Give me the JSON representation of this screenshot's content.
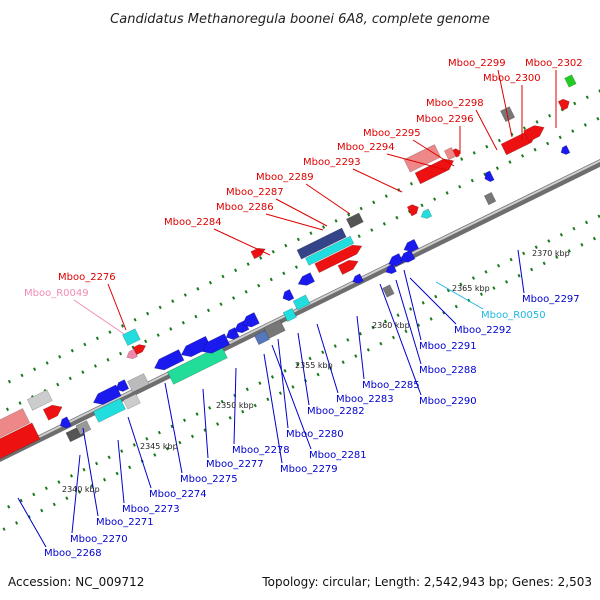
{
  "title": "Candidatus Methanoregula boonei 6A8, complete genome",
  "footer": {
    "accession": "Accession: NC_009712",
    "summary": "Topology: circular; Length: 2,542,943 bp; Genes: 2,503"
  },
  "colors": {
    "background": "#ffffff",
    "backbone": "#8c8c8c",
    "label_red": "#dd0000",
    "label_blue": "#0000cc",
    "label_pink": "#f08cb4",
    "label_cyan": "#1fb6e0",
    "forward_cds": "#ee1111",
    "reverse_cds": "#1a1aee",
    "rna": "#22dddd",
    "tick": "#1a7a1a"
  },
  "kbp_ticks": [
    "2340 kbp",
    "2345 kbp",
    "2350 kbp",
    "2355 kbp",
    "2360 kbp",
    "2365 kbp",
    "2370 kbp"
  ],
  "forward_labels": [
    {
      "name": "Mboo_2299",
      "color": "#dd0000"
    },
    {
      "name": "Mboo_2302",
      "color": "#dd0000"
    },
    {
      "name": "Mboo_2300",
      "color": "#dd0000"
    },
    {
      "name": "Mboo_2298",
      "color": "#dd0000"
    },
    {
      "name": "Mboo_2296",
      "color": "#dd0000"
    },
    {
      "name": "Mboo_2295",
      "color": "#dd0000"
    },
    {
      "name": "Mboo_2294",
      "color": "#dd0000"
    },
    {
      "name": "Mboo_2293",
      "color": "#dd0000"
    },
    {
      "name": "Mboo_2289",
      "color": "#dd0000"
    },
    {
      "name": "Mboo_2287",
      "color": "#dd0000"
    },
    {
      "name": "Mboo_2286",
      "color": "#dd0000"
    },
    {
      "name": "Mboo_2284",
      "color": "#dd0000"
    },
    {
      "name": "Mboo_2276",
      "color": "#dd0000"
    },
    {
      "name": "Mboo_R0049",
      "color": "#f08cb4"
    }
  ],
  "reverse_labels": [
    {
      "name": "Mboo_2297",
      "color": "#0000cc"
    },
    {
      "name": "Mboo_R0050",
      "color": "#1fb6e0"
    },
    {
      "name": "Mboo_2292",
      "color": "#0000cc"
    },
    {
      "name": "Mboo_2291",
      "color": "#0000cc"
    },
    {
      "name": "Mboo_2288",
      "color": "#0000cc"
    },
    {
      "name": "Mboo_2290",
      "color": "#0000cc"
    },
    {
      "name": "Mboo_2285",
      "color": "#0000cc"
    },
    {
      "name": "Mboo_2283",
      "color": "#0000cc"
    },
    {
      "name": "Mboo_2282",
      "color": "#0000cc"
    },
    {
      "name": "Mboo_2280",
      "color": "#0000cc"
    },
    {
      "name": "Mboo_2281",
      "color": "#0000cc"
    },
    {
      "name": "Mboo_2278",
      "color": "#0000cc"
    },
    {
      "name": "Mboo_2279",
      "color": "#0000cc"
    },
    {
      "name": "Mboo_2277",
      "color": "#0000cc"
    },
    {
      "name": "Mboo_2275",
      "color": "#0000cc"
    },
    {
      "name": "Mboo_2274",
      "color": "#0000cc"
    },
    {
      "name": "Mboo_2273",
      "color": "#0000cc"
    },
    {
      "name": "Mboo_2271",
      "color": "#0000cc"
    },
    {
      "name": "Mboo_2270",
      "color": "#0000cc"
    },
    {
      "name": "Mboo_2268",
      "color": "#0000cc"
    }
  ]
}
